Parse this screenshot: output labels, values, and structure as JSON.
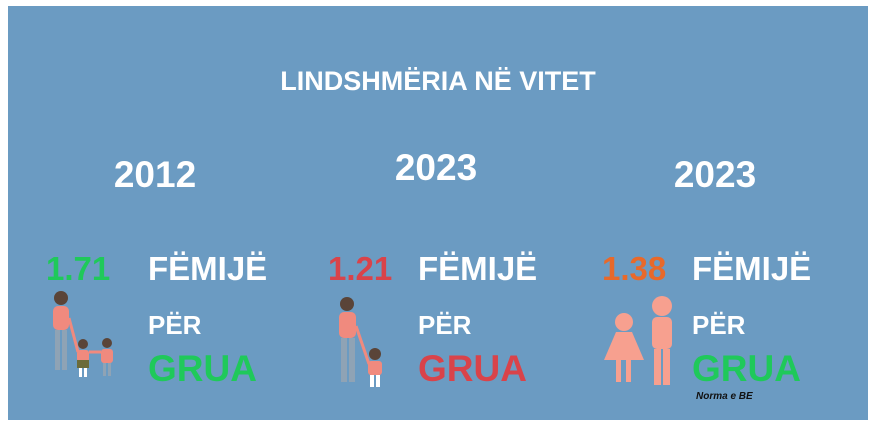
{
  "title": "LINDSHMËRIA NË VITET",
  "panels": [
    {
      "year": "2012",
      "value": "1.71",
      "unit": "FËMIJË",
      "per": "PËR",
      "noun": "GRUA"
    },
    {
      "year": "2023",
      "value": "1.21",
      "unit": "FËMIJË",
      "per": "PËR",
      "noun": "GRUA"
    },
    {
      "year": "2023",
      "value": "1.38",
      "unit": "FËMIJË",
      "per": "PËR",
      "noun": "GRUA",
      "note": "Norma e BE"
    }
  ]
}
